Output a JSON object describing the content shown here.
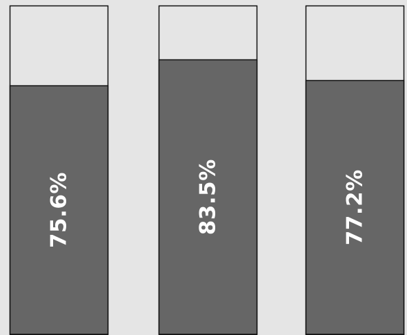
{
  "chart_data": {
    "type": "bar",
    "categories": [
      "",
      "",
      ""
    ],
    "values": [
      75.6,
      83.5,
      77.2
    ],
    "labels": [
      "75.6%",
      "83.5%",
      "77.2%"
    ],
    "ylim": [
      0,
      100
    ],
    "unit": "%",
    "grid": false,
    "legend": "none",
    "colors": {
      "background": "#e5e5e5",
      "track": "#e5e5e5",
      "fill": "#666666",
      "border": "#111111",
      "label": "#ffffff"
    }
  }
}
